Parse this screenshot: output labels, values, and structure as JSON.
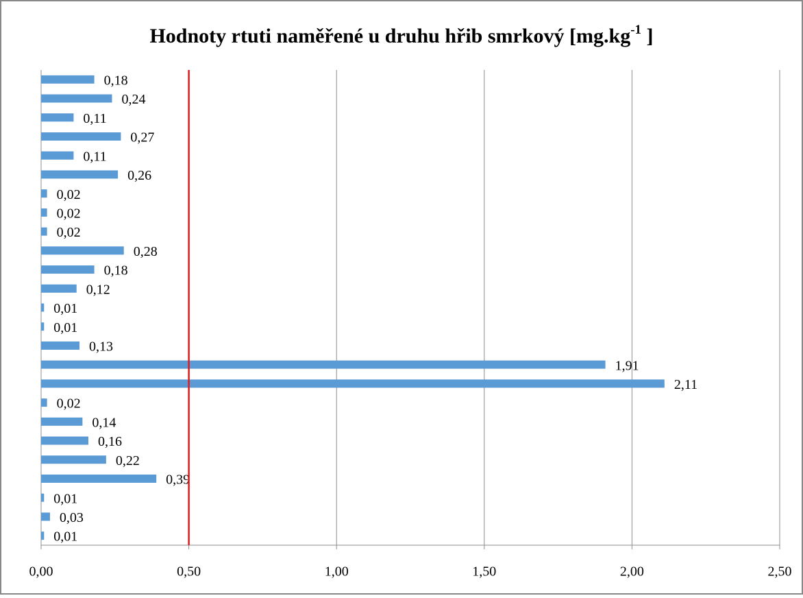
{
  "chart_data": {
    "type": "bar",
    "orientation": "horizontal",
    "title": {
      "text": "Hodnoty rtuti naměřené u druhu hřib smrkový [mg.kg",
      "superscript": "-1",
      "suffix": " ]"
    },
    "values": [
      0.18,
      0.24,
      0.11,
      0.27,
      0.11,
      0.26,
      0.02,
      0.02,
      0.02,
      0.28,
      0.18,
      0.12,
      0.01,
      0.01,
      0.13,
      1.91,
      2.11,
      0.02,
      0.14,
      0.16,
      0.22,
      0.39,
      0.01,
      0.03,
      0.01
    ],
    "value_labels": [
      "0,18",
      "0,24",
      "0,11",
      "0,27",
      "0,11",
      "0,26",
      "0,02",
      "0,02",
      "0,02",
      "0,28",
      "0,18",
      "0,12",
      "0,01",
      "0,01",
      "0,13",
      "1,91",
      "2,11",
      "0,02",
      "0,14",
      "0,16",
      "0,22",
      "0,39",
      "0,01",
      "0,03",
      "0,01"
    ],
    "color": "#5b9bd5",
    "xlim": [
      0,
      2.5
    ],
    "xticks": [
      {
        "value": 0,
        "label": "0,00"
      },
      {
        "value": 0.5,
        "label": "0,50"
      },
      {
        "value": 1,
        "label": "1,00"
      },
      {
        "value": 1.5,
        "label": "1,50"
      },
      {
        "value": 2,
        "label": "2,00"
      },
      {
        "value": 2.5,
        "label": "2,50"
      }
    ],
    "grid": true,
    "reference_line": {
      "value": 0.5,
      "color": "#e31a1c"
    }
  }
}
